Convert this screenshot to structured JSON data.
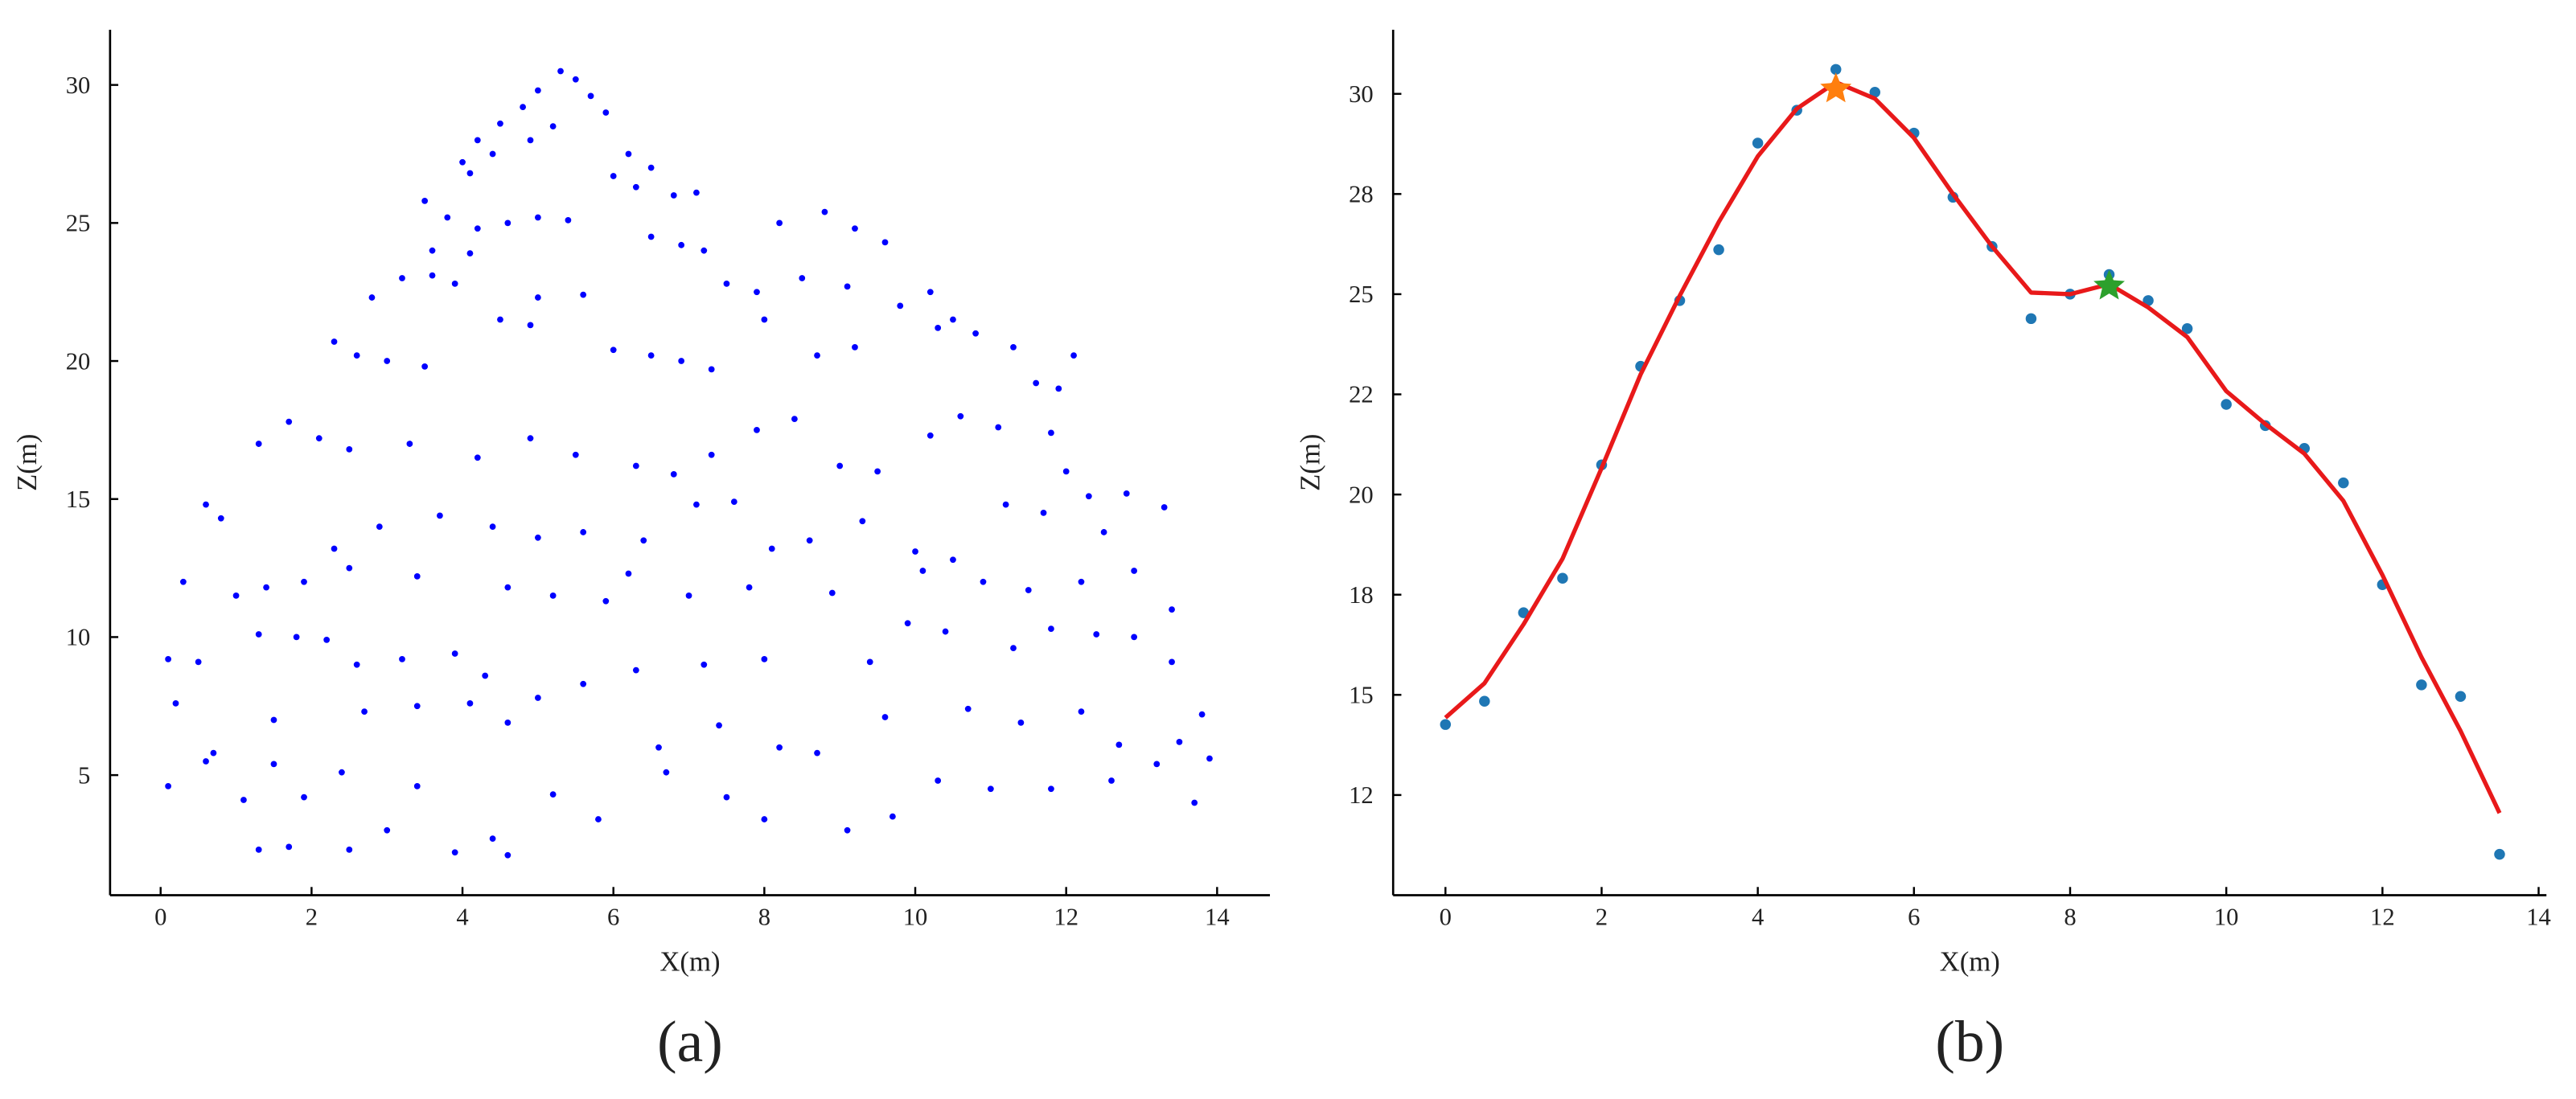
{
  "chart_data": [
    {
      "type": "scatter",
      "xlabel": "X(m)",
      "ylabel": "Z(m)",
      "caption": "(a)",
      "xlim": [
        -0.67,
        14.7
      ],
      "ylim": [
        0.65,
        32.0
      ],
      "xticks": [
        0,
        2,
        4,
        6,
        8,
        10,
        12,
        14
      ],
      "yticks": [
        5,
        10,
        15,
        20,
        25,
        30
      ],
      "color": "#0000ff",
      "x": [
        4.2,
        4.5,
        4.8,
        5.0,
        5.3,
        5.5,
        5.7,
        5.9,
        4.4,
        4.0,
        6.2,
        6.5,
        5.2,
        4.9,
        6.0,
        6.3,
        6.8,
        7.1,
        4.1,
        3.5,
        3.8,
        4.2,
        4.6,
        5.0,
        5.4,
        6.5,
        6.9,
        7.2,
        8.2,
        8.8,
        9.2,
        9.6,
        3.6,
        4.1,
        2.8,
        3.2,
        3.6,
        3.9,
        5.0,
        5.6,
        7.5,
        7.9,
        8.5,
        9.1,
        9.8,
        10.2,
        10.5,
        8.0,
        2.3,
        2.6,
        3.0,
        3.5,
        4.5,
        4.9,
        6.0,
        6.5,
        6.9,
        7.3,
        8.7,
        9.2,
        10.3,
        10.8,
        11.3,
        11.6,
        11.9,
        12.1,
        1.3,
        1.7,
        2.1,
        2.5,
        3.3,
        4.2,
        4.9,
        5.5,
        6.3,
        6.8,
        7.3,
        7.9,
        8.4,
        9.0,
        9.5,
        10.2,
        10.6,
        11.1,
        11.8,
        12.0,
        0.3,
        0.6,
        0.8,
        2.3,
        2.9,
        3.7,
        4.4,
        5.0,
        5.6,
        6.4,
        7.1,
        7.6,
        8.1,
        8.6,
        9.3,
        10.0,
        10.5,
        11.2,
        11.7,
        12.3,
        12.8,
        13.3,
        12.5,
        1.0,
        1.4,
        1.9,
        2.5,
        3.4,
        4.6,
        5.2,
        5.9,
        6.2,
        7.0,
        7.8,
        8.9,
        10.1,
        10.9,
        11.5,
        12.2,
        12.9,
        13.4,
        0.1,
        0.5,
        1.3,
        1.8,
        2.2,
        2.6,
        3.2,
        3.9,
        4.3,
        5.6,
        6.3,
        7.2,
        8.0,
        9.4,
        9.9,
        10.4,
        11.3,
        11.8,
        12.4,
        12.9,
        13.4,
        0.2,
        0.7,
        1.5,
        2.7,
        3.4,
        4.1,
        4.6,
        5.0,
        6.6,
        7.4,
        8.2,
        8.7,
        9.6,
        10.7,
        11.4,
        12.2,
        12.7,
        13.5,
        13.8,
        0.1,
        0.6,
        1.1,
        1.5,
        1.9,
        2.4,
        3.0,
        3.4,
        3.9,
        4.4,
        4.6,
        1.3,
        1.7,
        2.5,
        5.2,
        5.8,
        6.7,
        7.5,
        8.0,
        9.1,
        9.7,
        10.3,
        11.0,
        11.8,
        12.6,
        13.2,
        13.7,
        13.9
      ],
      "values": [
        28.0,
        28.6,
        29.2,
        29.8,
        30.5,
        30.2,
        29.6,
        29.0,
        27.5,
        27.2,
        27.5,
        27.0,
        28.5,
        28.0,
        26.7,
        26.3,
        26.0,
        26.1,
        26.8,
        25.8,
        25.2,
        24.8,
        25.0,
        25.2,
        25.1,
        24.5,
        24.2,
        24.0,
        25.0,
        25.4,
        24.8,
        24.3,
        24.0,
        23.9,
        22.3,
        23.0,
        23.1,
        22.8,
        22.3,
        22.4,
        22.8,
        22.5,
        23.0,
        22.7,
        22.0,
        22.5,
        21.5,
        21.5,
        20.7,
        20.2,
        20.0,
        19.8,
        21.5,
        21.3,
        20.4,
        20.2,
        20.0,
        19.7,
        20.2,
        20.5,
        21.2,
        21.0,
        20.5,
        19.2,
        19.0,
        20.2,
        17.0,
        17.8,
        17.2,
        16.8,
        17.0,
        16.5,
        17.2,
        16.6,
        16.2,
        15.9,
        16.6,
        17.5,
        17.9,
        16.2,
        16.0,
        17.3,
        18.0,
        17.6,
        17.4,
        16.0,
        12.0,
        14.8,
        14.3,
        13.2,
        14.0,
        14.4,
        14.0,
        13.6,
        13.8,
        13.5,
        14.8,
        14.9,
        13.2,
        13.5,
        14.2,
        13.1,
        12.8,
        14.8,
        14.5,
        15.1,
        15.2,
        14.7,
        13.8,
        11.5,
        11.8,
        12.0,
        12.5,
        12.2,
        11.8,
        11.5,
        11.3,
        12.3,
        11.5,
        11.8,
        11.6,
        12.4,
        12.0,
        11.7,
        12.0,
        12.4,
        11.0,
        9.2,
        9.1,
        10.1,
        10.0,
        9.9,
        9.0,
        9.2,
        9.4,
        8.6,
        8.3,
        8.8,
        9.0,
        9.2,
        9.1,
        10.5,
        10.2,
        9.6,
        10.3,
        10.1,
        10.0,
        9.1,
        7.6,
        5.8,
        7.0,
        7.3,
        7.5,
        7.6,
        6.9,
        7.8,
        6.0,
        6.8,
        6.0,
        5.8,
        7.1,
        7.4,
        6.9,
        7.3,
        6.1,
        6.2,
        7.2,
        4.6,
        5.5,
        4.1,
        5.4,
        4.2,
        5.1,
        3.0,
        4.6,
        2.2,
        2.7,
        2.1,
        2.3,
        2.4,
        2.3,
        4.3,
        3.4,
        5.1,
        4.2,
        3.4,
        3.0,
        3.5,
        4.8,
        4.5,
        4.5,
        4.8,
        5.4,
        4.0,
        5.6
      ]
    },
    {
      "type": "line",
      "xlabel": "X(m)",
      "ylabel": "Z(m)",
      "caption": "(b)",
      "xlim": [
        -0.67,
        14.1
      ],
      "ylim": [
        10.0,
        31.6
      ],
      "xticks": [
        0,
        2,
        4,
        6,
        8,
        10,
        12,
        14
      ],
      "yticks": [
        {
          "value": 12.5,
          "label": "12"
        },
        15,
        {
          "value": 17.5,
          "label": "18"
        },
        20,
        {
          "value": 22.5,
          "label": "22"
        },
        25,
        {
          "value": 27.5,
          "label": "28"
        },
        30
      ],
      "series": [
        {
          "style": "markers",
          "color": "#1f77b4",
          "x": [
            0,
            0.5,
            1,
            1.5,
            2,
            2.5,
            3,
            3.5,
            4,
            4.5,
            5,
            5.5,
            6,
            6.5,
            7,
            7.5,
            8,
            8.5,
            9,
            9.5,
            10,
            10.5,
            11,
            11.5,
            12,
            12.5,
            13,
            13.5
          ],
          "values": [
            14.26,
            14.84,
            17.05,
            17.91,
            20.74,
            23.2,
            24.84,
            26.11,
            28.77,
            29.59,
            30.61,
            30.04,
            29.02,
            27.42,
            26.19,
            24.39,
            25.0,
            25.49,
            24.84,
            24.14,
            22.25,
            21.72,
            21.15,
            20.29,
            17.75,
            15.25,
            14.96,
            11.02
          ]
        },
        {
          "style": "line",
          "color": "#e8191a",
          "x": [
            0,
            0.5,
            1,
            1.5,
            2,
            2.5,
            3,
            3.5,
            4,
            4.5,
            5,
            5.5,
            6,
            6.5,
            7,
            7.5,
            8,
            8.5,
            9,
            9.5,
            10,
            10.5,
            11,
            11.5,
            12,
            12.5,
            13,
            13.5
          ],
          "values": [
            14.43,
            15.29,
            16.76,
            18.4,
            20.66,
            23.0,
            24.96,
            26.8,
            28.44,
            29.63,
            30.29,
            29.88,
            28.9,
            27.5,
            26.19,
            25.04,
            25.0,
            25.25,
            24.67,
            23.93,
            22.58,
            21.76,
            21.02,
            19.84,
            17.99,
            15.94,
            14.1,
            12.05
          ]
        },
        {
          "style": "star",
          "color": "#ff7f0e",
          "x": [
            5
          ],
          "values": [
            30.12
          ]
        },
        {
          "style": "star",
          "color": "#2ca02c",
          "x": [
            8.5
          ],
          "values": [
            25.2
          ]
        }
      ]
    }
  ]
}
